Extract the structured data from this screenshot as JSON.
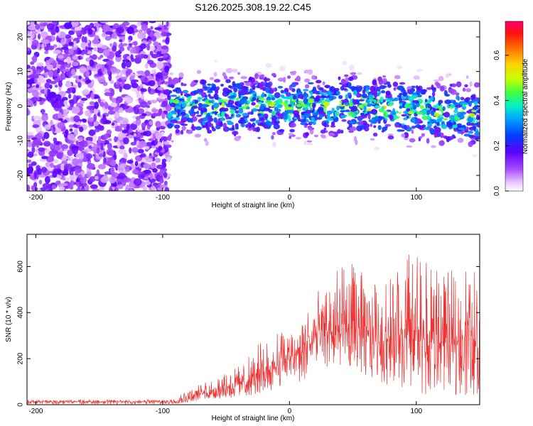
{
  "figure_title": "S126.2025.308.19.22.C45",
  "chart_data": [
    {
      "type": "heatmap",
      "title": "S126.2025.308.19.22.C45",
      "xlabel": "Height of straight line (km)",
      "ylabel": "Frequency (Hz)",
      "xlim": [
        -207,
        150
      ],
      "ylim": [
        -24.5,
        24.5
      ],
      "xticks": [
        -200,
        -100,
        0,
        100
      ],
      "yticks": [
        -20,
        -10,
        0,
        10,
        20
      ],
      "colorbar": {
        "label": "Normalized spectral amplitude",
        "range": [
          0.0,
          0.75
        ],
        "ticks": [
          0.0,
          0.2,
          0.4,
          0.6
        ],
        "tick_labels": [
          "0.0",
          "0.2",
          "0.4",
          "0.6"
        ]
      },
      "regions": [
        {
          "x_range": [
            -207,
            -95
          ],
          "description": "broadband noise across all frequencies",
          "typical_amplitude": 0.1
        },
        {
          "x_range": [
            -95,
            150
          ],
          "description": "signal band centered near 0 Hz (about -6 to +6 Hz)",
          "peak_amplitude": 0.5,
          "center_frequency_hz": 0
        }
      ]
    },
    {
      "type": "line",
      "xlabel": "Height of straight line (km)",
      "ylabel": "SNR (10 * v/v)",
      "xlim": [
        -207,
        150
      ],
      "ylim": [
        0,
        740
      ],
      "xticks": [
        -200,
        -100,
        0,
        100
      ],
      "yticks": [
        0,
        200,
        400,
        600
      ],
      "color": "#ee3333",
      "series": [
        {
          "name": "SNR",
          "x": [
            -207,
            -150,
            -100,
            -90,
            -80,
            -70,
            -60,
            -50,
            -40,
            -30,
            -20,
            -10,
            0,
            10,
            20,
            30,
            40,
            50,
            60,
            70,
            80,
            90,
            100,
            110,
            120,
            130,
            140,
            150
          ],
          "mean": [
            12,
            12,
            12,
            14,
            30,
            45,
            55,
            70,
            85,
            100,
            130,
            160,
            190,
            220,
            270,
            290,
            300,
            310,
            280,
            270,
            260,
            255,
            250,
            245,
            255,
            260,
            260,
            250
          ],
          "upper": [
            22,
            22,
            22,
            30,
            70,
            90,
            110,
            140,
            170,
            220,
            300,
            320,
            330,
            380,
            480,
            550,
            600,
            620,
            560,
            520,
            560,
            660,
            690,
            600,
            590,
            580,
            620,
            600
          ],
          "lower": [
            2,
            2,
            2,
            4,
            10,
            15,
            20,
            25,
            30,
            40,
            50,
            70,
            90,
            100,
            140,
            160,
            170,
            150,
            120,
            100,
            80,
            60,
            50,
            40,
            60,
            40,
            40,
            40
          ]
        }
      ]
    }
  ]
}
